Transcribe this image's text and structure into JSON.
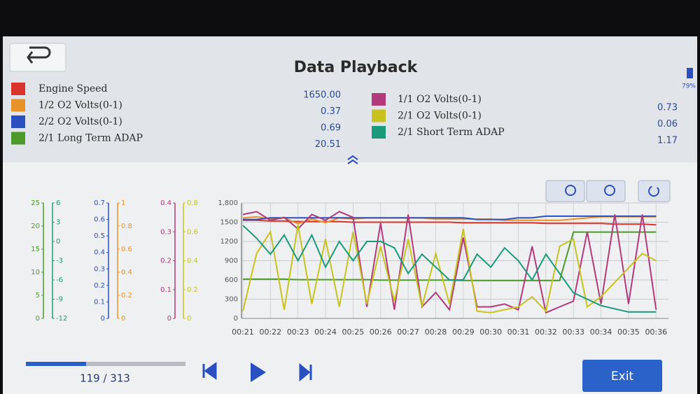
{
  "header": {
    "title": "Data Playback",
    "battery": "79%"
  },
  "chart_data": {
    "type": "line",
    "grid": true,
    "x": [
      21,
      21.5,
      22,
      22.5,
      23,
      23.5,
      24,
      24.5,
      25,
      25.5,
      26,
      26.5,
      27,
      27.5,
      28,
      28.5,
      29,
      29.5,
      30,
      30.5,
      31,
      31.5,
      32,
      32.5,
      33,
      33.5,
      34,
      34.5,
      35,
      35.5,
      36
    ],
    "xlim": [
      20.95,
      36.45
    ],
    "xticks": [
      {
        "value": 21,
        "label": "00:21"
      },
      {
        "value": 22,
        "label": "00:22"
      },
      {
        "value": 23,
        "label": "00:23"
      },
      {
        "value": 24,
        "label": "00:24"
      },
      {
        "value": 25,
        "label": "00:25"
      },
      {
        "value": 26,
        "label": "00:26"
      },
      {
        "value": 27,
        "label": "00:27"
      },
      {
        "value": 28,
        "label": "00:28"
      },
      {
        "value": 29,
        "label": "00:29"
      },
      {
        "value": 30,
        "label": "00:30"
      },
      {
        "value": 31,
        "label": "00:31"
      },
      {
        "value": 32,
        "label": "00:32"
      },
      {
        "value": 33,
        "label": "00:33"
      },
      {
        "value": 34,
        "label": "00:34"
      },
      {
        "value": 35,
        "label": "00:35"
      },
      {
        "value": 36,
        "label": "00:36"
      }
    ],
    "axes": [
      {
        "color": "#555555",
        "ylim": [
          0,
          1800
        ],
        "yticks": [
          0,
          300,
          600,
          900,
          1200,
          1500,
          {
            "value": 1800,
            "label": "1,800"
          }
        ]
      },
      {
        "color": "#4c9a2a",
        "ylim": [
          0,
          25
        ],
        "yticks": [
          0,
          5,
          10,
          15,
          20,
          25
        ]
      },
      {
        "color": "#1a9a7a",
        "ylim": [
          -12,
          6
        ],
        "yticks": [
          -12,
          -9,
          -6,
          -3,
          0,
          3,
          6
        ]
      },
      {
        "color": "#2a4fc0",
        "ylim": [
          0,
          0.7
        ],
        "yticks": [
          0,
          0.1,
          0.2,
          0.3,
          0.4,
          0.5,
          0.6,
          0.7
        ]
      },
      {
        "color": "#e8922a",
        "ylim": [
          0,
          1
        ],
        "yticks": [
          0,
          0.2,
          0.4,
          0.6,
          0.8,
          1
        ]
      },
      {
        "color": "#b03a7a",
        "ylim": [
          0,
          0.4
        ],
        "yticks": [
          0,
          0.1,
          0.2,
          0.3,
          0.4
        ]
      },
      {
        "color": "#c8c21e",
        "ylim": [
          0,
          0.8
        ],
        "yticks": [
          0,
          0.2,
          0.4,
          0.6,
          0.8
        ]
      }
    ],
    "series": [
      {
        "name": "Engine Speed",
        "readout": "1650.00",
        "color": "#d9342b",
        "axis": 0,
        "values": [
          1530,
          1530,
          1520,
          1520,
          1510,
          1510,
          1510,
          1510,
          1500,
          1500,
          1500,
          1500,
          1500,
          1500,
          1500,
          1500,
          1490,
          1490,
          1490,
          1490,
          1490,
          1490,
          1480,
          1480,
          1480,
          1480,
          1480,
          1470,
          1470,
          1470,
          1460
        ]
      },
      {
        "name": "1/2 O2 Volts(0-1)",
        "readout": "0.37",
        "color": "#e8922a",
        "axis": 4,
        "values": [
          0.87,
          0.88,
          0.86,
          0.87,
          0.82,
          0.86,
          0.83,
          0.87,
          0.86,
          0.87,
          0.87,
          0.87,
          0.87,
          0.87,
          0.86,
          0.86,
          0.86,
          0.86,
          0.86,
          0.85,
          0.85,
          0.85,
          0.85,
          0.85,
          0.86,
          0.87,
          0.88,
          0.88,
          0.88,
          0.88,
          0.88
        ]
      },
      {
        "name": "2/2 O2 Volts(0-1)",
        "readout": "0.69",
        "color": "#2a4fc0",
        "axis": 3,
        "values": [
          0.6,
          0.6,
          0.61,
          0.61,
          0.61,
          0.61,
          0.61,
          0.61,
          0.61,
          0.61,
          0.61,
          0.61,
          0.61,
          0.61,
          0.61,
          0.61,
          0.61,
          0.6,
          0.6,
          0.6,
          0.61,
          0.61,
          0.62,
          0.62,
          0.62,
          0.62,
          0.62,
          0.62,
          0.62,
          0.62,
          0.62
        ]
      },
      {
        "name": "2/1 Long Term ADAP",
        "readout": "20.51",
        "color": "#4c9a2a",
        "axis": 1,
        "values": [
          8.5,
          8.5,
          8.5,
          8.5,
          8.4,
          8.4,
          8.4,
          8.4,
          8.4,
          8.4,
          8.3,
          8.3,
          8.3,
          8.3,
          8.3,
          8.3,
          8.2,
          8.2,
          8.2,
          8.2,
          8.2,
          8.2,
          8.2,
          8.2,
          18.7,
          18.7,
          18.7,
          18.7,
          18.7,
          18.7,
          18.7
        ]
      },
      {
        "name": "1/1 O2 Volts(0-1)",
        "readout": "0.73",
        "color": "#b03a7a",
        "axis": 5,
        "values": [
          0.36,
          0.37,
          0.34,
          0.35,
          0.31,
          0.36,
          0.34,
          0.37,
          0.35,
          0.04,
          0.33,
          0.03,
          0.36,
          0.04,
          0.09,
          0.03,
          0.28,
          0.04,
          0.04,
          0.05,
          0.03,
          0.25,
          0.02,
          0.04,
          0.06,
          0.3,
          0.05,
          0.36,
          0.05,
          0.36,
          0.03
        ]
      },
      {
        "name": "2/1 O2 Volts(0-1)",
        "readout": "0.06",
        "color": "#c8c21e",
        "axis": 6,
        "values": [
          0.05,
          0.45,
          0.6,
          0.06,
          0.65,
          0.1,
          0.55,
          0.08,
          0.6,
          0.1,
          0.5,
          0.12,
          0.55,
          0.08,
          0.45,
          0.1,
          0.62,
          0.05,
          0.04,
          0.06,
          0.08,
          0.15,
          0.05,
          0.5,
          0.55,
          0.08,
          0.15,
          0.25,
          0.35,
          0.45,
          0.4
        ]
      },
      {
        "name": "2/1 Short Term ADAP",
        "readout": "1.17",
        "color": "#1a9a7a",
        "axis": 2,
        "values": [
          2.5,
          0.5,
          -2,
          1,
          -3,
          1,
          -4,
          0,
          -3,
          0,
          0,
          -1,
          -5,
          -2,
          -4,
          -6,
          -6,
          -2,
          -4,
          -1,
          -3,
          -6,
          -2,
          -5,
          -8,
          -9,
          -10,
          -10.5,
          -11,
          -11,
          -11
        ]
      }
    ]
  },
  "playback": {
    "counter": "119 / 313",
    "exit": "Exit"
  }
}
